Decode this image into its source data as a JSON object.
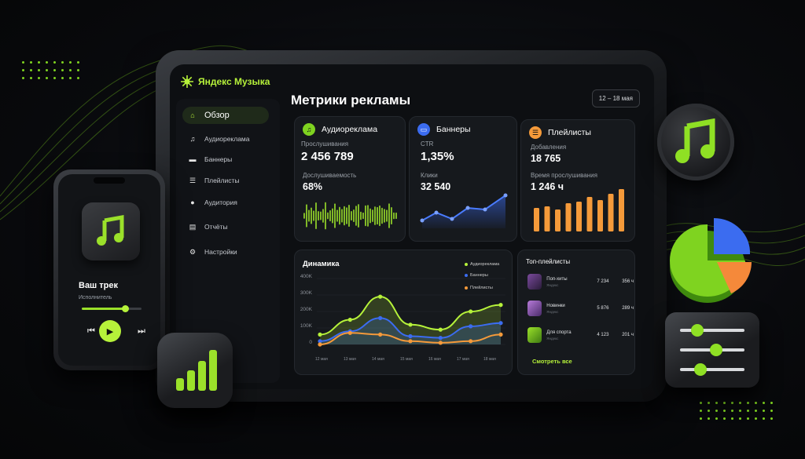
{
  "app": {
    "brand": "Яндекс Музыка",
    "title": "Метрики рекламы",
    "date_range": "12 – 18 мая"
  },
  "colors": {
    "accent": "#b6f23a",
    "blue": "#3b6cf0",
    "orange": "#f59a3a"
  },
  "sidebar": {
    "items": [
      {
        "label": "Обзор",
        "icon": "home-icon",
        "active": true
      },
      {
        "label": "Аудиореклама",
        "icon": "music-note-icon"
      },
      {
        "label": "Баннеры",
        "icon": "banner-icon"
      },
      {
        "label": "Плейлисты",
        "icon": "list-icon"
      },
      {
        "label": "Аудитория",
        "icon": "user-icon"
      },
      {
        "label": "Отчёты",
        "icon": "document-icon"
      },
      {
        "label": "Настройки",
        "icon": "gear-icon"
      }
    ]
  },
  "cards": {
    "audio": {
      "title": "Аудиореклама",
      "plays_label": "Прослушивания",
      "plays_value": "2 456 789",
      "completion_label": "Дослушиваемость",
      "completion_value": "68%"
    },
    "banners": {
      "title": "Баннеры",
      "ctr_label": "CTR",
      "ctr_value": "1,35%",
      "clicks_label": "Клики",
      "clicks_value": "32 540"
    },
    "playlists": {
      "title": "Плейлисты",
      "adds_label": "Добавления",
      "adds_value": "18 765",
      "time_label": "Время прослушивания",
      "time_value": "1 246 ч"
    }
  },
  "dynamics": {
    "title": "Динамика",
    "legend": [
      "Аудиореклама",
      "Баннеры",
      "Плейлисты"
    ],
    "y_ticks": [
      "400K",
      "300K",
      "200K",
      "100K",
      "0"
    ],
    "x_ticks": [
      "12 мая",
      "13 мая",
      "14 мая",
      "15 мая",
      "16 мая",
      "17 мая",
      "18 мая"
    ]
  },
  "chart_data": {
    "type": "line",
    "title": "Динамика",
    "categories": [
      "12 мая",
      "13 мая",
      "14 мая",
      "15 мая",
      "16 мая",
      "17 мая",
      "18 мая"
    ],
    "ylim": [
      0,
      400000
    ],
    "series": [
      {
        "name": "Аудиореклама",
        "values": [
          60000,
          150000,
          290000,
          120000,
          90000,
          200000,
          240000
        ]
      },
      {
        "name": "Баннеры",
        "values": [
          20000,
          80000,
          160000,
          50000,
          40000,
          110000,
          130000
        ]
      },
      {
        "name": "Плейлисты",
        "values": [
          0,
          70000,
          60000,
          20000,
          10000,
          20000,
          60000
        ]
      }
    ]
  },
  "top_playlists": {
    "title": "Топ-плейлисты",
    "rows": [
      {
        "name": "Поп-хиты",
        "sub": "Яндекс",
        "count": "7 234",
        "hours": "356 ч"
      },
      {
        "name": "Новинки",
        "sub": "Яндекс",
        "count": "5 876",
        "hours": "289 ч"
      },
      {
        "name": "Для спорта",
        "sub": "Яндекс",
        "count": "4 123",
        "hours": "201 ч"
      }
    ],
    "see_all": "Смотреть все"
  },
  "player": {
    "track": "Ваш трек",
    "artist": "Исполнитель",
    "progress": 0.72
  }
}
